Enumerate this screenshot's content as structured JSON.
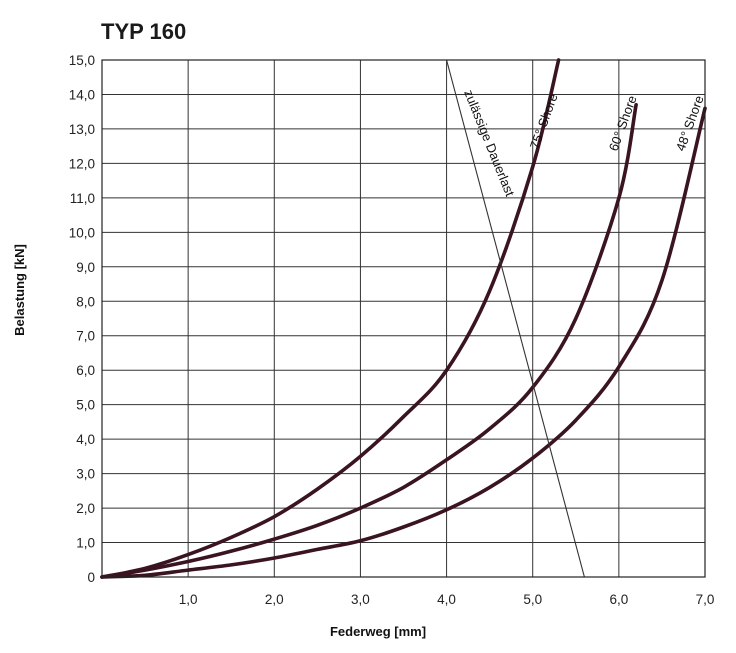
{
  "chart_data": {
    "type": "line",
    "title": "TYP 160",
    "xlabel": "Federweg [mm]",
    "ylabel": "Belastung [kN]",
    "xlim": [
      0,
      7.0
    ],
    "ylim": [
      0,
      15.0
    ],
    "x_ticks": [
      "1,0",
      "2,0",
      "3,0",
      "4,0",
      "5,0",
      "6,0",
      "7,0"
    ],
    "y_ticks": [
      "0",
      "1,0",
      "2,0",
      "3,0",
      "4,0",
      "5,0",
      "6,0",
      "7,0",
      "8,0",
      "9,0",
      "10,0",
      "11,0",
      "12,0",
      "13,0",
      "14,0",
      "15,0"
    ],
    "grid": true,
    "series": [
      {
        "name": "75° Shore",
        "style": "thick",
        "x": [
          0,
          0.5,
          1.0,
          1.5,
          2.0,
          2.5,
          3.0,
          3.5,
          4.0,
          4.5,
          5.0,
          5.3
        ],
        "y": [
          0,
          0.25,
          0.65,
          1.15,
          1.75,
          2.55,
          3.5,
          4.65,
          6.0,
          8.3,
          11.9,
          15.0
        ]
      },
      {
        "name": "60° Shore",
        "style": "thick",
        "x": [
          0,
          0.5,
          1.0,
          1.5,
          2.0,
          2.5,
          3.0,
          3.5,
          4.0,
          4.5,
          5.0,
          5.5,
          6.0,
          6.2
        ],
        "y": [
          0,
          0.2,
          0.45,
          0.75,
          1.1,
          1.5,
          2.0,
          2.6,
          3.4,
          4.3,
          5.5,
          7.5,
          11.0,
          13.7
        ]
      },
      {
        "name": "48° Shore",
        "style": "thick",
        "x": [
          0,
          0.5,
          1.0,
          1.5,
          2.0,
          2.5,
          3.0,
          3.5,
          4.0,
          4.5,
          5.0,
          5.5,
          6.0,
          6.5,
          7.0
        ],
        "y": [
          0,
          0.05,
          0.2,
          0.35,
          0.55,
          0.8,
          1.05,
          1.45,
          1.95,
          2.6,
          3.45,
          4.55,
          6.1,
          8.6,
          13.6
        ]
      },
      {
        "name": "zulässige Dauerlast",
        "style": "thin",
        "x": [
          4.0,
          5.6
        ],
        "y": [
          15.0,
          0
        ]
      }
    ]
  }
}
